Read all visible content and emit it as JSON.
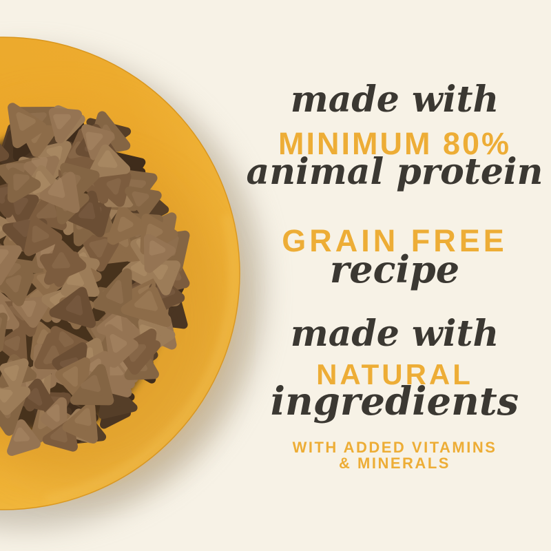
{
  "page": {
    "background_color": "#F7F2E6"
  },
  "photo": {
    "description": "yellow round plate piled with triangular brown dry kibble, soft shadow lower right",
    "plate_color": "#EFAD2D",
    "plate_edge_color": "#D9961E",
    "plate_highlight_color": "#F6C75B",
    "plate_shade_color": "#C07F1C",
    "shadow_color": "#A89E8B",
    "kibble_base_color": "#46321F",
    "kibble_palette": [
      [
        "#9C7C58",
        "#B0906A"
      ],
      [
        "#8D6C49",
        "#A1805C"
      ],
      [
        "#7C5C3E",
        "#8F6F4F"
      ],
      [
        "#6B4E34",
        "#7E6045"
      ],
      [
        "#957453",
        "#A98866"
      ],
      [
        "#846544",
        "#977756"
      ]
    ],
    "kibble_dark_colors": [
      "#4A3522",
      "#553E28",
      "#3F2C1B"
    ]
  },
  "colors": {
    "accent_yellow": "#EDAD36",
    "text_dark": "#3B3832"
  },
  "claims": {
    "block1": {
      "line1": "made with",
      "line2": "MINIMUM 80%",
      "line3": "animal protein"
    },
    "block2": {
      "line1": "GRAIN FREE",
      "line2": "recipe"
    },
    "block3": {
      "line1": "made with",
      "line2": "NATURAL",
      "line3": "ingredients"
    },
    "footnote": {
      "line1": "WITH ADDED VITAMINS",
      "line2": "& MINERALS"
    }
  }
}
